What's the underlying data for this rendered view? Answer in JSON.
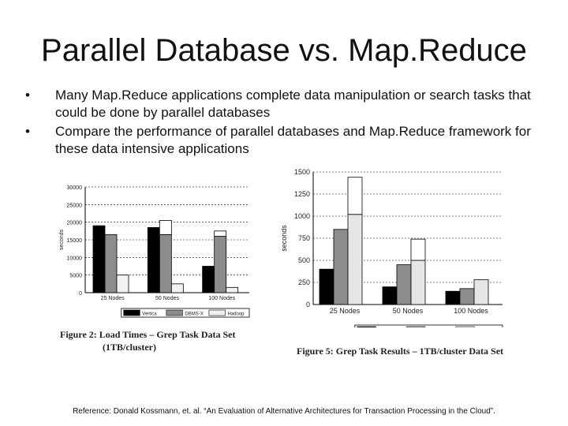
{
  "slide": {
    "title": "Parallel Database vs. Map.Reduce",
    "bullets": [
      "Many Map.Reduce applications complete data manipulation or search tasks that could be done by parallel databases",
      "Compare the performance of parallel databases and Map.Reduce framework for these data intensive applications"
    ],
    "bullet_glyph": "•",
    "reference": "Reference: Donald Kossmann, et. al. “An Evaluation of Alternative Architectures for Transaction Processing in the Cloud”."
  },
  "figures": [
    {
      "caption_line1": "Figure 2: Load Times – Grep Task Data Set",
      "caption_line2": "(1TB/cluster)"
    },
    {
      "caption_line1": "Figure 5: Grep Task Results – 1TB/cluster Data Set",
      "caption_line2": ""
    }
  ],
  "chart_data": [
    {
      "type": "bar",
      "title": "",
      "xlabel": "",
      "ylabel": "seconds",
      "categories": [
        "25 Nodes",
        "50 Nodes",
        "100 Nodes"
      ],
      "ylim": [
        0,
        30000
      ],
      "yticks": [
        0,
        5000,
        10000,
        15000,
        20000,
        25000,
        30000
      ],
      "grid": true,
      "legend_position": "bottom",
      "series": [
        {
          "name": "Vertica",
          "color": "#000000",
          "values": [
            19000,
            18500,
            7500
          ]
        },
        {
          "name": "DBMS-X",
          "color": "#8c8c8c",
          "values": [
            16500,
            16500,
            16000
          ],
          "stacked_extra": [
            0,
            0,
            1500
          ]
        },
        {
          "name": "Hadoop",
          "color": "#f2f2f2",
          "values": [
            5000,
            2500,
            1500
          ]
        }
      ],
      "overflow_bars": [
        {
          "category_index": 1,
          "series_index": 1,
          "extra": 4000
        }
      ]
    },
    {
      "type": "bar",
      "title": "",
      "xlabel": "",
      "ylabel": "seconds",
      "categories": [
        "25 Nodes",
        "50 Nodes",
        "100 Nodes"
      ],
      "ylim": [
        0,
        1500
      ],
      "yticks": [
        0,
        250,
        500,
        750,
        1000,
        1250,
        1500
      ],
      "grid": true,
      "legend_position": "bottom",
      "series": [
        {
          "name": "Vertica",
          "color": "#000000",
          "values": [
            400,
            200,
            150
          ]
        },
        {
          "name": "DBMS-X",
          "color": "#8c8c8c",
          "values": [
            850,
            450,
            180
          ]
        },
        {
          "name": "Hadoop",
          "color": "#e6e6e6",
          "values": [
            1020,
            500,
            280
          ],
          "stacked_extra": [
            420,
            240,
            0
          ]
        }
      ]
    }
  ]
}
